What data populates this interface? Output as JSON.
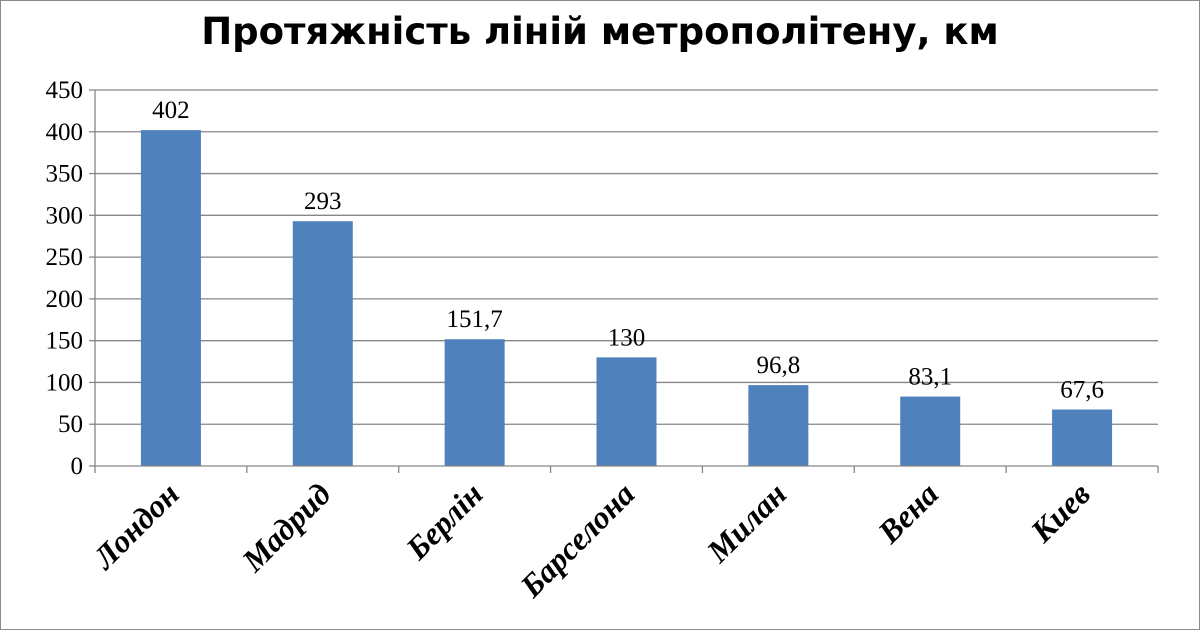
{
  "chart_data": {
    "type": "bar",
    "title": "Протяжність ліній метрополітену, км",
    "categories": [
      "Лондон",
      "Мадрид",
      "Берлін",
      "Барселона",
      "Милан",
      "Вена",
      "Киев"
    ],
    "values": [
      402,
      293,
      151.7,
      130,
      96.8,
      83.1,
      67.6
    ],
    "value_labels": [
      "402",
      "293",
      "151,7",
      "130",
      "96,8",
      "83,1",
      "67,6"
    ],
    "y_ticks": [
      0,
      50,
      100,
      150,
      200,
      250,
      300,
      350,
      400,
      450
    ],
    "ylim": [
      0,
      450
    ],
    "grid": true,
    "legend": "none",
    "bar_color": "#4f81bd",
    "grid_color": "#868686"
  }
}
